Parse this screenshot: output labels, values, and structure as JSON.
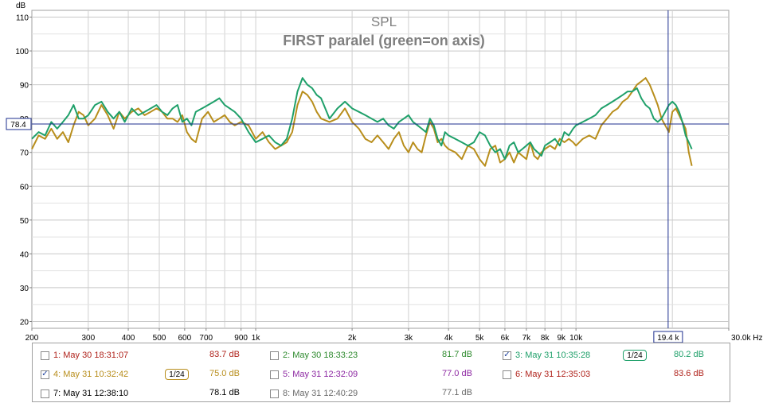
{
  "chart_data": {
    "type": "line",
    "title": "SPL",
    "subtitle": "FIRST paralel (green=on axis)",
    "ylabel": "dB",
    "xlabel": "Hz",
    "x_scale": "log",
    "xlim": [
      200,
      30000
    ],
    "ylim": [
      18,
      112
    ],
    "x_ticks": [
      {
        "v": 200,
        "l": "200"
      },
      {
        "v": 300,
        "l": "300"
      },
      {
        "v": 400,
        "l": "400"
      },
      {
        "v": 500,
        "l": "500"
      },
      {
        "v": 600,
        "l": "600"
      },
      {
        "v": 700,
        "l": "700"
      },
      {
        "v": 900,
        "l": "900"
      },
      {
        "v": 1000,
        "l": "1k"
      },
      {
        "v": 2000,
        "l": "2k"
      },
      {
        "v": 3000,
        "l": "3k"
      },
      {
        "v": 4000,
        "l": "4k"
      },
      {
        "v": 5000,
        "l": "5k"
      },
      {
        "v": 6000,
        "l": "6k"
      },
      {
        "v": 7000,
        "l": "7k"
      },
      {
        "v": 8000,
        "l": "8k"
      },
      {
        "v": 9000,
        "l": "9k"
      },
      {
        "v": 10000,
        "l": "10k"
      },
      {
        "v": 30000,
        "l": "30.0k Hz"
      }
    ],
    "y_ticks": [
      20,
      30,
      40,
      50,
      60,
      70,
      80,
      90,
      100,
      110
    ],
    "cursor": {
      "x": 19400,
      "x_label": "19.4 k",
      "y": 78.4,
      "y_label": "78.4"
    },
    "grid": true,
    "series": [
      {
        "name": "3: May 31 10:35:28",
        "color": "#1fa06a",
        "x": [
          200,
          210,
          220,
          230,
          240,
          250,
          260,
          270,
          280,
          290,
          300,
          315,
          330,
          345,
          360,
          375,
          390,
          410,
          430,
          450,
          470,
          490,
          510,
          530,
          550,
          570,
          590,
          610,
          630,
          650,
          680,
          710,
          740,
          770,
          800,
          830,
          860,
          900,
          950,
          1000,
          1050,
          1100,
          1150,
          1200,
          1250,
          1300,
          1350,
          1400,
          1450,
          1500,
          1550,
          1600,
          1700,
          1800,
          1900,
          2000,
          2100,
          2200,
          2300,
          2400,
          2500,
          2600,
          2700,
          2800,
          2900,
          3000,
          3100,
          3200,
          3300,
          3400,
          3500,
          3600,
          3700,
          3800,
          3900,
          4000,
          4200,
          4400,
          4600,
          4800,
          5000,
          5200,
          5400,
          5600,
          5800,
          6000,
          6200,
          6400,
          6600,
          6800,
          7000,
          7200,
          7400,
          7600,
          7800,
          8000,
          8300,
          8600,
          8900,
          9200,
          9500,
          9800,
          10000,
          10500,
          11000,
          11500,
          12000,
          12500,
          13000,
          13500,
          14000,
          14500,
          15000,
          15500,
          16000,
          16500,
          17000,
          17500,
          18000,
          18500,
          19000,
          19500,
          20000,
          20500,
          21000,
          21500,
          22000,
          22500,
          23000
        ],
        "y": [
          74,
          76,
          75,
          79,
          77,
          79,
          81,
          84,
          80,
          80,
          81,
          84,
          85,
          82,
          80,
          82,
          79,
          83,
          81,
          82,
          83,
          84,
          82,
          81,
          83,
          84,
          79,
          80,
          78,
          82,
          83,
          84,
          85,
          86,
          84,
          83,
          82,
          80,
          76,
          73,
          74,
          75,
          73,
          72,
          74,
          80,
          88,
          92,
          90,
          89,
          87,
          86,
          80,
          83,
          85,
          83,
          82,
          81,
          80,
          79,
          80,
          78,
          77,
          79,
          80,
          81,
          79,
          78,
          77,
          76,
          80,
          78,
          74,
          72,
          76,
          75,
          74,
          73,
          72,
          73,
          76,
          75,
          72,
          70,
          71,
          68,
          72,
          73,
          70,
          71,
          72,
          73,
          71,
          70,
          69,
          72,
          73,
          74,
          72,
          76,
          75,
          77,
          78,
          79,
          80,
          81,
          83,
          84,
          85,
          86,
          87,
          88,
          88,
          89,
          86,
          84,
          83,
          80,
          79,
          80,
          82,
          84,
          85,
          84,
          82,
          79,
          75,
          73,
          71
        ]
      },
      {
        "name": "4: May 31 10:32:42",
        "color": "#b88e1c",
        "x": [
          200,
          210,
          220,
          230,
          240,
          250,
          260,
          270,
          280,
          290,
          300,
          315,
          330,
          345,
          360,
          375,
          390,
          410,
          430,
          450,
          470,
          490,
          510,
          530,
          550,
          570,
          590,
          610,
          630,
          650,
          680,
          710,
          740,
          770,
          800,
          830,
          860,
          900,
          950,
          1000,
          1050,
          1100,
          1150,
          1200,
          1250,
          1300,
          1350,
          1400,
          1450,
          1500,
          1550,
          1600,
          1700,
          1800,
          1900,
          2000,
          2100,
          2200,
          2300,
          2400,
          2500,
          2600,
          2700,
          2800,
          2900,
          3000,
          3100,
          3200,
          3300,
          3400,
          3500,
          3600,
          3700,
          3800,
          3900,
          4000,
          4200,
          4400,
          4600,
          4800,
          5000,
          5200,
          5400,
          5600,
          5800,
          6000,
          6200,
          6400,
          6600,
          6800,
          7000,
          7200,
          7400,
          7600,
          7800,
          8000,
          8300,
          8600,
          8900,
          9200,
          9500,
          9800,
          10000,
          10500,
          11000,
          11500,
          12000,
          12500,
          13000,
          13500,
          14000,
          14500,
          15000,
          15500,
          16000,
          16500,
          17000,
          17500,
          18000,
          18500,
          19000,
          19500,
          20000,
          20500,
          21000,
          21500,
          22000,
          22500,
          23000
        ],
        "y": [
          71,
          75,
          74,
          77,
          74,
          76,
          73,
          78,
          82,
          81,
          78,
          80,
          84,
          81,
          77,
          82,
          80,
          82,
          83,
          81,
          82,
          83,
          82,
          80,
          80,
          79,
          81,
          76,
          74,
          73,
          80,
          82,
          79,
          80,
          81,
          79,
          78,
          79,
          78,
          74,
          76,
          73,
          71,
          72,
          73,
          76,
          84,
          88,
          87,
          85,
          82,
          80,
          79,
          80,
          83,
          79,
          77,
          74,
          73,
          75,
          73,
          71,
          74,
          76,
          72,
          70,
          73,
          71,
          70,
          75,
          79,
          77,
          73,
          74,
          72,
          71,
          70,
          68,
          72,
          71,
          68,
          66,
          71,
          72,
          67,
          68,
          70,
          67,
          70,
          69,
          68,
          73,
          69,
          68,
          70,
          71,
          72,
          71,
          74,
          73,
          74,
          73,
          72,
          74,
          75,
          74,
          78,
          80,
          82,
          83,
          85,
          86,
          88,
          90,
          91,
          92,
          90,
          87,
          84,
          80,
          78,
          76,
          82,
          83,
          81,
          79,
          77,
          70,
          66
        ]
      }
    ]
  },
  "legend": {
    "items": [
      {
        "label": "1: May 30 18:31:07",
        "value": "83.7 dB",
        "color": "#b0231c",
        "checked": false,
        "smoothing": ""
      },
      {
        "label": "2: May 30 18:33:23",
        "value": "81.7 dB",
        "color": "#2f8b2f",
        "checked": false,
        "smoothing": ""
      },
      {
        "label": "3: May 31 10:35:28",
        "value": "80.2 dB",
        "color": "#1fa06a",
        "checked": true,
        "smoothing": "1/24"
      },
      {
        "label": "4: May 31 10:32:42",
        "value": "75.0 dB",
        "color": "#b88e1c",
        "checked": true,
        "smoothing": "1/24"
      },
      {
        "label": "5: May 31 12:32:09",
        "value": "77.0 dB",
        "color": "#8e2aa3",
        "checked": false,
        "smoothing": ""
      },
      {
        "label": "6: May 31 12:35:03",
        "value": "83.6 dB",
        "color": "#b0231c",
        "checked": false,
        "smoothing": ""
      },
      {
        "label": "7: May 31 12:38:10",
        "value": "78.1 dB",
        "color": "#000000",
        "checked": false,
        "smoothing": ""
      },
      {
        "label": "8: May 31 12:40:29",
        "value": "77.1 dB",
        "color": "#6a6a6a",
        "checked": false,
        "smoothing": ""
      }
    ]
  }
}
